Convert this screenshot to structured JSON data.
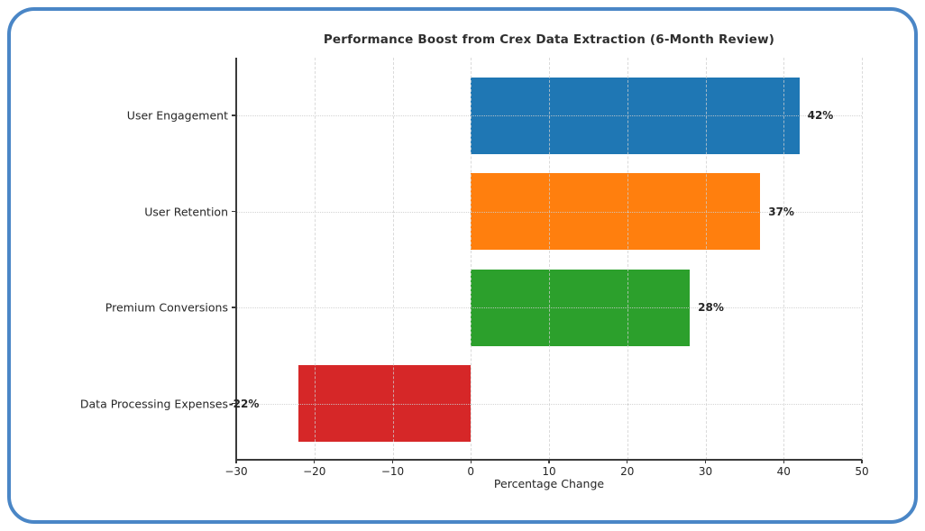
{
  "frame": {
    "border_color": "#4a86c6"
  },
  "chart_data": {
    "type": "bar",
    "orientation": "horizontal",
    "title": "Performance Boost from Crex Data Extraction (6-Month Review)",
    "xlabel": "Percentage Change",
    "ylabel": "",
    "categories": [
      "User Engagement",
      "User Retention",
      "Premium Conversions",
      "Data Processing Expenses"
    ],
    "values": [
      42,
      37,
      28,
      -22
    ],
    "value_labels": [
      "42%",
      "37%",
      "28%",
      "-22%"
    ],
    "bar_colors": [
      "#1f77b4",
      "#ff7f0e",
      "#2ca02c",
      "#d62728"
    ],
    "xlim": [
      -30,
      50
    ],
    "xticks": [
      -30,
      -20,
      -10,
      0,
      10,
      20,
      30,
      40,
      50
    ],
    "xtick_labels": [
      "−30",
      "−20",
      "−10",
      "0",
      "10",
      "20",
      "30",
      "40",
      "50"
    ],
    "grid": true,
    "legend_position": "none"
  }
}
